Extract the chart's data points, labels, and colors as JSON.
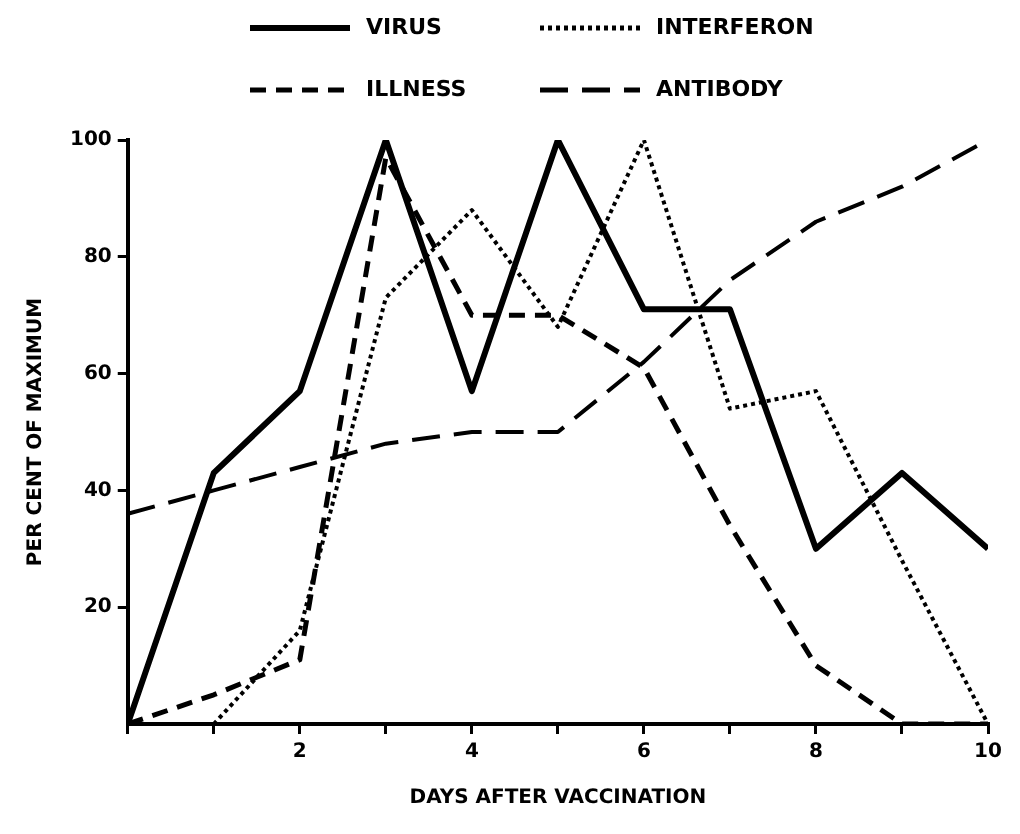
{
  "chart_data": {
    "type": "line",
    "xlabel": "DAYS AFTER VACCINATION",
    "ylabel": "PER CENT OF MAXIMUM",
    "x": [
      0,
      1,
      2,
      3,
      4,
      5,
      6,
      7,
      8,
      9,
      10
    ],
    "xlim": [
      0,
      10
    ],
    "xticks": [
      {
        "value": 0,
        "label": null
      },
      {
        "value": 1,
        "label": null
      },
      2,
      {
        "value": 3,
        "label": null
      },
      4,
      {
        "value": 5,
        "label": null
      },
      6,
      {
        "value": 7,
        "label": null
      },
      8,
      {
        "value": 9,
        "label": null
      },
      10
    ],
    "ylim": [
      0,
      100
    ],
    "yticks": [
      20,
      40,
      60,
      80,
      100
    ],
    "grid": false,
    "legend": "top",
    "marker": "none",
    "series": [
      {
        "name": "VIRUS",
        "color": "#000000",
        "line_style": "solid",
        "values": [
          0,
          43,
          57,
          100,
          57,
          100,
          71,
          71,
          30,
          43,
          30
        ]
      },
      {
        "name": "INTERFERON",
        "color": "#000000",
        "line_style": "dotted",
        "values": [
          null,
          0,
          16,
          73,
          88,
          68,
          100,
          54,
          57,
          28,
          0
        ]
      },
      {
        "name": "ILLNESS",
        "color": "#000000",
        "line_style": "dashed",
        "values": [
          0,
          5,
          11,
          97,
          70,
          70,
          61,
          34,
          10,
          0,
          0
        ]
      },
      {
        "name": "ANTIBODY",
        "color": "#000000",
        "line_style": "longdash",
        "values": [
          36,
          40,
          44,
          48,
          50,
          50,
          62,
          76,
          86,
          92,
          100
        ]
      }
    ]
  }
}
